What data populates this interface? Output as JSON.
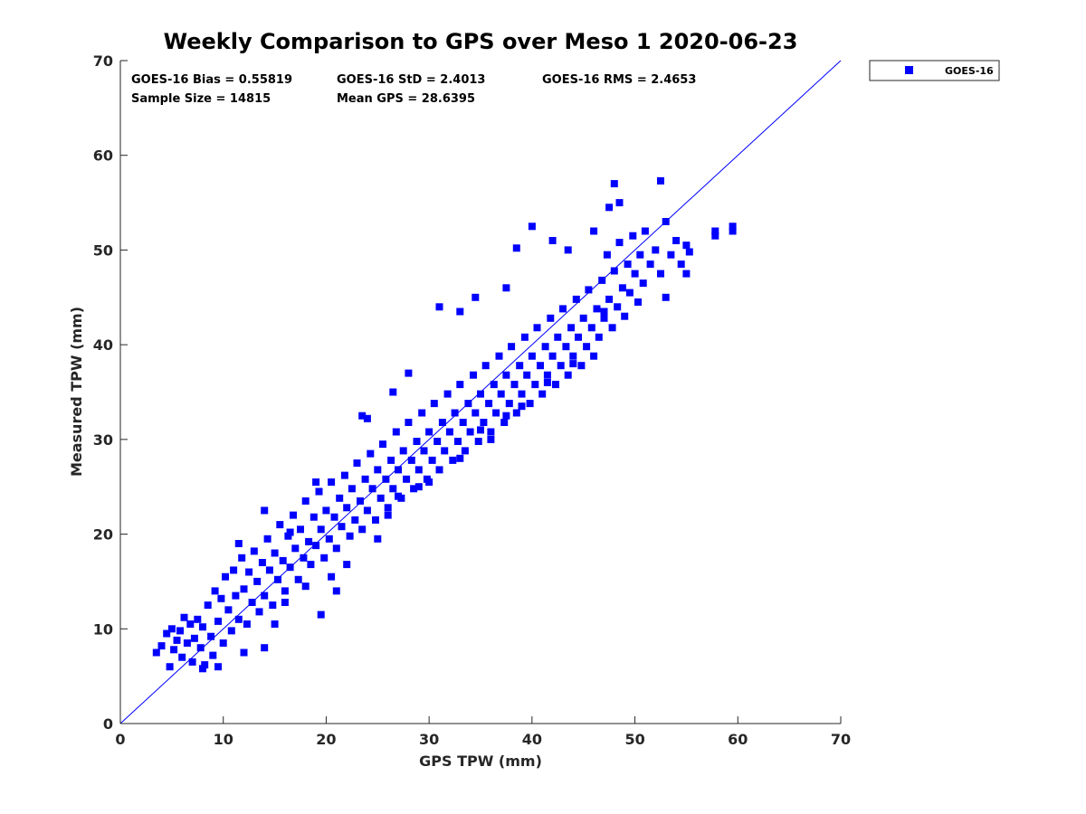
{
  "chart_data": {
    "type": "scatter",
    "title": "Weekly Comparison to GPS over Meso 1 2020-06-23",
    "xlabel": "GPS TPW (mm)",
    "ylabel": "Measured TPW (mm)",
    "xlim": [
      0,
      70
    ],
    "ylim": [
      0,
      70
    ],
    "xticks": [
      "0",
      "10",
      "20",
      "30",
      "40",
      "50",
      "60",
      "70"
    ],
    "yticks": [
      "0",
      "10",
      "20",
      "30",
      "40",
      "50",
      "60",
      "70"
    ],
    "grid": false,
    "legend_position": "outside-top-right",
    "series_color": "#0000ff",
    "reference_line": {
      "from": [
        0,
        0
      ],
      "to": [
        70,
        70
      ]
    },
    "stats": {
      "bias": "GOES-16 Bias = 0.55819",
      "std": "GOES-16 StD = 2.4013",
      "rms": "GOES-16 RMS = 2.4653",
      "sample_size": "Sample Size = 14815",
      "mean_gps": "Mean GPS = 28.6395"
    },
    "series": [
      {
        "name": "GOES-16",
        "points": [
          [
            3.5,
            7.5
          ],
          [
            4.0,
            8.2
          ],
          [
            4.5,
            9.5
          ],
          [
            4.8,
            6.0
          ],
          [
            5.0,
            10.0
          ],
          [
            5.2,
            7.8
          ],
          [
            5.5,
            8.8
          ],
          [
            5.8,
            9.8
          ],
          [
            6.0,
            7.0
          ],
          [
            6.2,
            11.2
          ],
          [
            6.5,
            8.5
          ],
          [
            6.8,
            10.5
          ],
          [
            7.0,
            6.5
          ],
          [
            7.2,
            9.0
          ],
          [
            7.5,
            11.0
          ],
          [
            7.8,
            8.0
          ],
          [
            8.0,
            10.2
          ],
          [
            8.2,
            6.2
          ],
          [
            8.5,
            12.5
          ],
          [
            8.8,
            9.2
          ],
          [
            9.0,
            7.2
          ],
          [
            9.2,
            14.0
          ],
          [
            9.5,
            10.8
          ],
          [
            9.8,
            13.2
          ],
          [
            10.0,
            8.5
          ],
          [
            10.2,
            15.5
          ],
          [
            10.5,
            12.0
          ],
          [
            10.8,
            9.8
          ],
          [
            11.0,
            16.2
          ],
          [
            11.2,
            13.5
          ],
          [
            11.5,
            11.0
          ],
          [
            11.8,
            17.5
          ],
          [
            12.0,
            14.2
          ],
          [
            12.3,
            10.5
          ],
          [
            12.5,
            16.0
          ],
          [
            12.8,
            12.8
          ],
          [
            13.0,
            18.2
          ],
          [
            13.3,
            15.0
          ],
          [
            13.5,
            11.8
          ],
          [
            13.8,
            17.0
          ],
          [
            14.0,
            13.5
          ],
          [
            14.3,
            19.5
          ],
          [
            14.5,
            16.2
          ],
          [
            14.8,
            12.5
          ],
          [
            15.0,
            18.0
          ],
          [
            15.3,
            15.2
          ],
          [
            15.5,
            21.0
          ],
          [
            15.8,
            17.2
          ],
          [
            16.0,
            14.0
          ],
          [
            16.3,
            19.8
          ],
          [
            16.5,
            16.5
          ],
          [
            16.8,
            22.0
          ],
          [
            17.0,
            18.5
          ],
          [
            17.3,
            15.2
          ],
          [
            17.5,
            20.5
          ],
          [
            17.8,
            17.5
          ],
          [
            18.0,
            23.5
          ],
          [
            18.3,
            19.2
          ],
          [
            18.5,
            16.8
          ],
          [
            18.8,
            21.8
          ],
          [
            19.0,
            18.8
          ],
          [
            19.3,
            24.5
          ],
          [
            19.5,
            20.5
          ],
          [
            19.8,
            17.5
          ],
          [
            20.0,
            22.5
          ],
          [
            20.3,
            19.5
          ],
          [
            20.5,
            25.5
          ],
          [
            20.8,
            21.8
          ],
          [
            21.0,
            18.5
          ],
          [
            21.3,
            23.8
          ],
          [
            21.5,
            20.8
          ],
          [
            21.8,
            26.2
          ],
          [
            22.0,
            22.8
          ],
          [
            22.3,
            19.8
          ],
          [
            22.5,
            24.8
          ],
          [
            22.8,
            21.5
          ],
          [
            23.0,
            27.5
          ],
          [
            23.3,
            23.5
          ],
          [
            23.5,
            20.5
          ],
          [
            23.8,
            25.8
          ],
          [
            24.0,
            22.5
          ],
          [
            24.3,
            28.5
          ],
          [
            24.5,
            24.8
          ],
          [
            24.8,
            21.5
          ],
          [
            25.0,
            26.8
          ],
          [
            25.3,
            23.8
          ],
          [
            25.5,
            29.5
          ],
          [
            25.8,
            25.8
          ],
          [
            26.0,
            22.8
          ],
          [
            26.3,
            27.8
          ],
          [
            26.5,
            24.8
          ],
          [
            26.8,
            30.8
          ],
          [
            27.0,
            26.8
          ],
          [
            27.3,
            23.8
          ],
          [
            27.5,
            28.8
          ],
          [
            27.8,
            25.8
          ],
          [
            28.0,
            31.8
          ],
          [
            28.3,
            27.8
          ],
          [
            28.5,
            24.8
          ],
          [
            28.8,
            29.8
          ],
          [
            29.0,
            26.8
          ],
          [
            29.3,
            32.8
          ],
          [
            29.5,
            28.8
          ],
          [
            29.8,
            25.8
          ],
          [
            30.0,
            30.8
          ],
          [
            30.3,
            27.8
          ],
          [
            30.5,
            33.8
          ],
          [
            30.8,
            29.8
          ],
          [
            31.0,
            26.8
          ],
          [
            31.3,
            31.8
          ],
          [
            31.5,
            28.8
          ],
          [
            31.8,
            34.8
          ],
          [
            32.0,
            30.8
          ],
          [
            32.3,
            27.8
          ],
          [
            32.5,
            32.8
          ],
          [
            32.8,
            29.8
          ],
          [
            33.0,
            35.8
          ],
          [
            33.3,
            31.8
          ],
          [
            33.5,
            28.8
          ],
          [
            33.8,
            33.8
          ],
          [
            34.0,
            30.8
          ],
          [
            34.3,
            36.8
          ],
          [
            34.5,
            32.8
          ],
          [
            34.8,
            29.8
          ],
          [
            35.0,
            34.8
          ],
          [
            35.3,
            31.8
          ],
          [
            35.5,
            37.8
          ],
          [
            35.8,
            33.8
          ],
          [
            36.0,
            30.8
          ],
          [
            36.3,
            35.8
          ],
          [
            36.5,
            32.8
          ],
          [
            36.8,
            38.8
          ],
          [
            37.0,
            34.8
          ],
          [
            37.3,
            31.8
          ],
          [
            37.5,
            36.8
          ],
          [
            37.8,
            33.8
          ],
          [
            38.0,
            39.8
          ],
          [
            38.3,
            35.8
          ],
          [
            38.5,
            32.8
          ],
          [
            38.8,
            37.8
          ],
          [
            39.0,
            34.8
          ],
          [
            39.3,
            40.8
          ],
          [
            39.5,
            36.8
          ],
          [
            39.8,
            33.8
          ],
          [
            40.0,
            38.8
          ],
          [
            40.3,
            35.8
          ],
          [
            40.5,
            41.8
          ],
          [
            40.8,
            37.8
          ],
          [
            41.0,
            34.8
          ],
          [
            41.3,
            39.8
          ],
          [
            41.5,
            36.8
          ],
          [
            41.8,
            42.8
          ],
          [
            42.0,
            38.8
          ],
          [
            42.3,
            35.8
          ],
          [
            42.5,
            40.8
          ],
          [
            42.8,
            37.8
          ],
          [
            43.0,
            43.8
          ],
          [
            43.3,
            39.8
          ],
          [
            43.5,
            36.8
          ],
          [
            43.8,
            41.8
          ],
          [
            44.0,
            38.8
          ],
          [
            44.3,
            44.8
          ],
          [
            44.5,
            40.8
          ],
          [
            44.8,
            37.8
          ],
          [
            45.0,
            42.8
          ],
          [
            45.3,
            39.8
          ],
          [
            45.5,
            45.8
          ],
          [
            45.8,
            41.8
          ],
          [
            46.0,
            38.8
          ],
          [
            46.3,
            43.8
          ],
          [
            46.5,
            40.8
          ],
          [
            46.8,
            46.8
          ],
          [
            47.0,
            42.8
          ],
          [
            47.3,
            49.5
          ],
          [
            47.5,
            44.8
          ],
          [
            47.8,
            41.8
          ],
          [
            48.0,
            47.8
          ],
          [
            48.3,
            44.0
          ],
          [
            48.5,
            50.8
          ],
          [
            48.8,
            46.0
          ],
          [
            49.0,
            43.0
          ],
          [
            49.3,
            48.5
          ],
          [
            49.5,
            45.5
          ],
          [
            49.8,
            51.5
          ],
          [
            50.0,
            47.5
          ],
          [
            50.3,
            44.5
          ],
          [
            50.5,
            49.5
          ],
          [
            50.8,
            46.5
          ],
          [
            51.0,
            52.0
          ],
          [
            51.5,
            48.5
          ],
          [
            52.0,
            50.0
          ],
          [
            52.5,
            47.5
          ],
          [
            53.0,
            53.0
          ],
          [
            53.5,
            49.5
          ],
          [
            54.0,
            51.0
          ],
          [
            54.5,
            48.5
          ],
          [
            55.0,
            50.5
          ],
          [
            55.3,
            49.8
          ],
          [
            11.5,
            19.0
          ],
          [
            14.0,
            22.5
          ],
          [
            16.5,
            20.2
          ],
          [
            19.0,
            25.5
          ],
          [
            23.5,
            32.5
          ],
          [
            24.0,
            32.2
          ],
          [
            26.5,
            35.0
          ],
          [
            28.0,
            37.0
          ],
          [
            31.0,
            44.0
          ],
          [
            33.0,
            43.5
          ],
          [
            34.5,
            45.0
          ],
          [
            37.5,
            46.0
          ],
          [
            38.5,
            50.2
          ],
          [
            40.0,
            52.5
          ],
          [
            42.0,
            51.0
          ],
          [
            43.5,
            50.0
          ],
          [
            46.0,
            52.0
          ],
          [
            47.5,
            54.5
          ],
          [
            48.0,
            57.0
          ],
          [
            48.5,
            55.0
          ],
          [
            52.5,
            57.3
          ],
          [
            53.0,
            45.0
          ],
          [
            55.0,
            47.5
          ],
          [
            57.8,
            51.5
          ],
          [
            57.8,
            52.0
          ],
          [
            59.5,
            52.0
          ],
          [
            59.5,
            52.5
          ],
          [
            14.0,
            8.0
          ],
          [
            15.0,
            10.5
          ],
          [
            18.0,
            14.5
          ],
          [
            19.5,
            11.5
          ],
          [
            20.5,
            15.5
          ],
          [
            21.0,
            14.0
          ],
          [
            22.0,
            16.8
          ],
          [
            25.0,
            19.5
          ],
          [
            27.0,
            24.0
          ],
          [
            30.0,
            25.5
          ],
          [
            33.0,
            28.0
          ],
          [
            35.0,
            31.0
          ],
          [
            37.5,
            32.5
          ],
          [
            39.0,
            33.5
          ],
          [
            41.5,
            36.0
          ],
          [
            44.0,
            38.0
          ],
          [
            47.0,
            43.5
          ],
          [
            12.0,
            7.5
          ],
          [
            8.0,
            5.8
          ],
          [
            9.5,
            6.0
          ],
          [
            16.0,
            12.8
          ],
          [
            26.0,
            22.0
          ],
          [
            29.0,
            25.0
          ],
          [
            36.0,
            30.0
          ]
        ]
      }
    ]
  }
}
